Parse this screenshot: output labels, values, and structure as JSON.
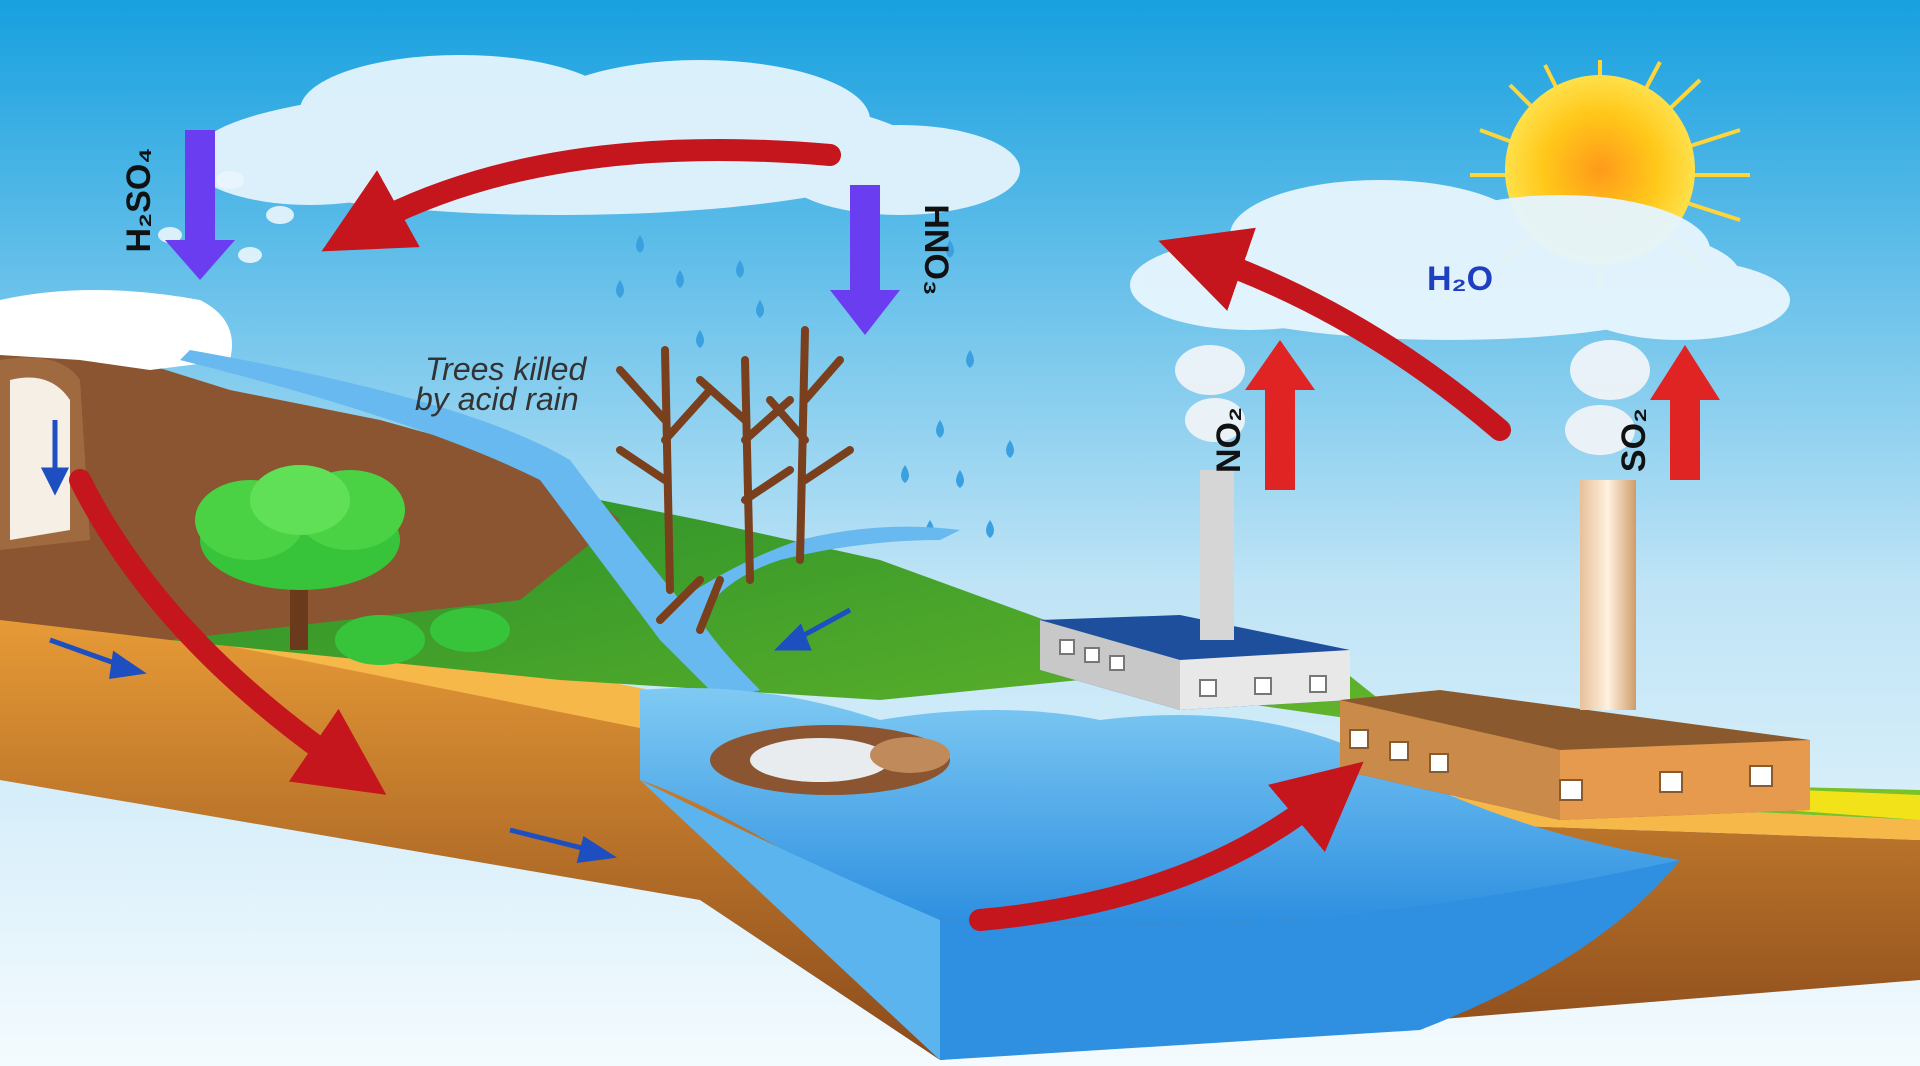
{
  "labels": {
    "h2so4": "H₂SO₄",
    "hno3": "HNO₃",
    "h2o": "H₂O",
    "no2": "NO₂",
    "so2": "SO₂",
    "trees_line1": "Trees killed",
    "trees_line2": "by acid rain"
  },
  "colors": {
    "sky_top": "#1aa3e0",
    "sky_bottom": "#e9f5fb",
    "cycle_arrow": "#c4161c",
    "acid_arrow": "#6a3df0",
    "emission_arrow": "#e02424",
    "grass": "#2f9a2a",
    "water": "#4aa8e6",
    "soil": "#b86a2a",
    "sun": "#ffcf1a"
  }
}
